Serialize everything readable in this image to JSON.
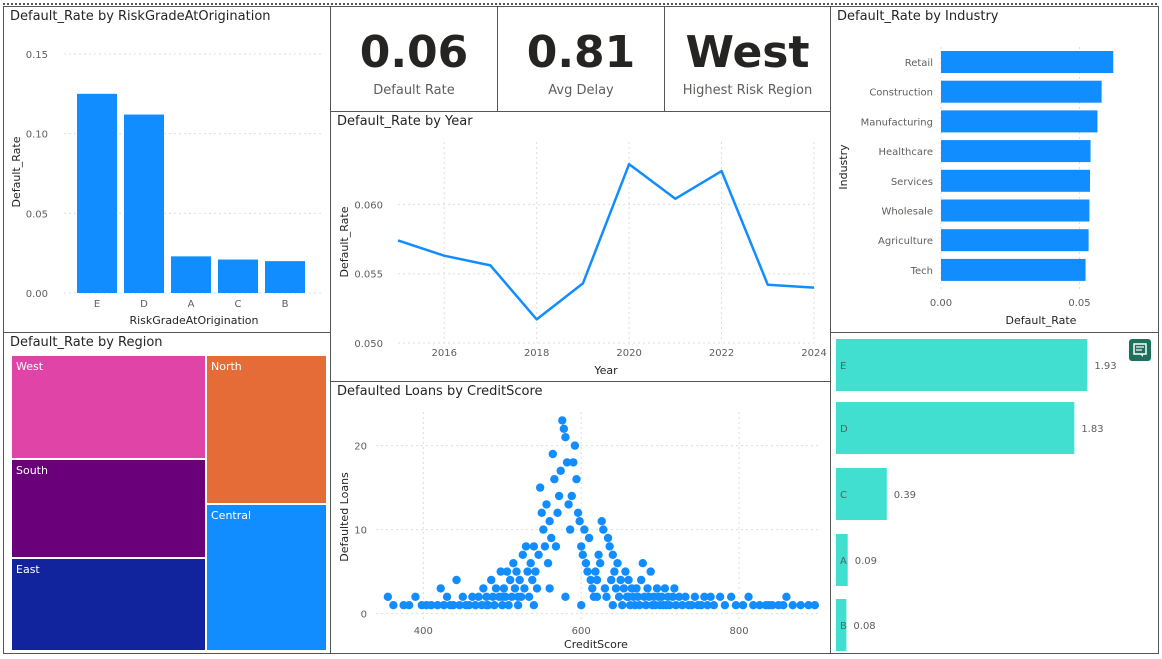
{
  "colors": {
    "bar": "#118DFF",
    "line": "#118DFF",
    "teal": "#41DFD0",
    "west": "#E044A7",
    "north": "#E66C37",
    "south": "#6B007B",
    "central": "#118DFF",
    "east": "#12239E"
  },
  "risk_grade": {
    "title": "Default_Rate by RiskGradeAtOrigination",
    "chart_data": {
      "type": "bar",
      "categories": [
        "E",
        "D",
        "A",
        "C",
        "B"
      ],
      "values": [
        0.125,
        0.112,
        0.023,
        0.021,
        0.02
      ],
      "xlabel": "RiskGradeAtOrigination",
      "ylabel": "Default_Rate",
      "ylim": [
        0,
        0.15
      ],
      "yticks": [
        "0.15",
        "0.10",
        "0.05",
        "0.00"
      ]
    }
  },
  "cards": [
    {
      "value": "0.06",
      "label": "Default Rate"
    },
    {
      "value": "0.81",
      "label": "Avg Delay"
    },
    {
      "value": "West",
      "label": "Highest Risk Region"
    }
  ],
  "industry": {
    "title": "Default_Rate by Industry",
    "chart_data": {
      "type": "bar",
      "orientation": "horizontal",
      "categories": [
        "Retail",
        "Construction",
        "Manufacturing",
        "Healthcare",
        "Services",
        "Wholesale",
        "Agriculture",
        "Tech"
      ],
      "values": [
        0.0622,
        0.058,
        0.0565,
        0.054,
        0.0538,
        0.0536,
        0.0533,
        0.0522
      ],
      "xlabel": "Default_Rate",
      "ylabel": "Industry",
      "xlim": [
        0,
        0.065
      ],
      "xticks": [
        "0.00",
        "0.05"
      ]
    }
  },
  "year": {
    "title": "Default_Rate by Year",
    "chart_data": {
      "type": "line",
      "x": [
        2015,
        2016,
        2017,
        2018,
        2019,
        2020,
        2021,
        2022,
        2023,
        2024
      ],
      "values": [
        0.0574,
        0.0563,
        0.0556,
        0.0517,
        0.0543,
        0.0629,
        0.0604,
        0.0624,
        0.0542,
        0.054
      ],
      "xlabel": "Year",
      "ylabel": "Default_Rate",
      "ylim": [
        0.05,
        0.0645
      ],
      "xlim": [
        2015,
        2024
      ],
      "xticks": [
        "2016",
        "2018",
        "2020",
        "2022",
        "2024"
      ],
      "yticks": [
        "0.060",
        "0.055",
        "0.050"
      ]
    }
  },
  "region": {
    "title": "Default_Rate by Region",
    "chart_data": {
      "type": "treemap",
      "categories": [
        "West",
        "North",
        "South",
        "Central",
        "East"
      ],
      "values": [
        0.062,
        0.0615,
        0.06,
        0.059,
        0.058
      ]
    }
  },
  "credit": {
    "title": "Defaulted Loans by CreditScore",
    "chart_data": {
      "type": "scatter",
      "xlabel": "CreditScore",
      "ylabel": "Defaulted Loans",
      "xlim": [
        340,
        900
      ],
      "ylim": [
        -1,
        24
      ],
      "xticks": [
        "400",
        "600",
        "800"
      ],
      "yticks": [
        "20",
        "10",
        "0"
      ],
      "points": [
        [
          355,
          2
        ],
        [
          362,
          1
        ],
        [
          375,
          1
        ],
        [
          382,
          1
        ],
        [
          390,
          2
        ],
        [
          398,
          1
        ],
        [
          404,
          1
        ],
        [
          410,
          1
        ],
        [
          418,
          1
        ],
        [
          422,
          3
        ],
        [
          426,
          1
        ],
        [
          430,
          2
        ],
        [
          434,
          1
        ],
        [
          438,
          1
        ],
        [
          442,
          4
        ],
        [
          446,
          1
        ],
        [
          450,
          2
        ],
        [
          454,
          1
        ],
        [
          458,
          1
        ],
        [
          462,
          2
        ],
        [
          466,
          1
        ],
        [
          470,
          2
        ],
        [
          474,
          1
        ],
        [
          476,
          3
        ],
        [
          480,
          2
        ],
        [
          482,
          1
        ],
        [
          486,
          4
        ],
        [
          488,
          2
        ],
        [
          490,
          1
        ],
        [
          492,
          3
        ],
        [
          496,
          2
        ],
        [
          498,
          5
        ],
        [
          500,
          1
        ],
        [
          502,
          3
        ],
        [
          504,
          2
        ],
        [
          506,
          5
        ],
        [
          508,
          1
        ],
        [
          510,
          4
        ],
        [
          512,
          2
        ],
        [
          514,
          6
        ],
        [
          516,
          3
        ],
        [
          518,
          5
        ],
        [
          520,
          1
        ],
        [
          522,
          4
        ],
        [
          524,
          2
        ],
        [
          526,
          7
        ],
        [
          528,
          3
        ],
        [
          530,
          8
        ],
        [
          532,
          5
        ],
        [
          534,
          2
        ],
        [
          536,
          6
        ],
        [
          538,
          4
        ],
        [
          540,
          8
        ],
        [
          542,
          5
        ],
        [
          544,
          3
        ],
        [
          546,
          7
        ],
        [
          548,
          15
        ],
        [
          550,
          12
        ],
        [
          552,
          10
        ],
        [
          554,
          8
        ],
        [
          556,
          13
        ],
        [
          558,
          6
        ],
        [
          560,
          11
        ],
        [
          562,
          9
        ],
        [
          564,
          19
        ],
        [
          566,
          16
        ],
        [
          568,
          8
        ],
        [
          570,
          12
        ],
        [
          572,
          14
        ],
        [
          574,
          17
        ],
        [
          576,
          23
        ],
        [
          578,
          22
        ],
        [
          580,
          21
        ],
        [
          582,
          18
        ],
        [
          584,
          13
        ],
        [
          586,
          10
        ],
        [
          588,
          14
        ],
        [
          590,
          18
        ],
        [
          592,
          20
        ],
        [
          594,
          16
        ],
        [
          596,
          12
        ],
        [
          598,
          11
        ],
        [
          600,
          8
        ],
        [
          602,
          7
        ],
        [
          604,
          10
        ],
        [
          606,
          6
        ],
        [
          608,
          5
        ],
        [
          610,
          9
        ],
        [
          612,
          4
        ],
        [
          614,
          3
        ],
        [
          616,
          2
        ],
        [
          618,
          5
        ],
        [
          620,
          4
        ],
        [
          622,
          7
        ],
        [
          624,
          6
        ],
        [
          626,
          11
        ],
        [
          628,
          10
        ],
        [
          630,
          3
        ],
        [
          632,
          2
        ],
        [
          634,
          9
        ],
        [
          636,
          8
        ],
        [
          638,
          4
        ],
        [
          640,
          7
        ],
        [
          642,
          5
        ],
        [
          644,
          3
        ],
        [
          646,
          6
        ],
        [
          648,
          2
        ],
        [
          650,
          4
        ],
        [
          652,
          1
        ],
        [
          654,
          3
        ],
        [
          656,
          5
        ],
        [
          658,
          2
        ],
        [
          660,
          4
        ],
        [
          662,
          1
        ],
        [
          664,
          3
        ],
        [
          666,
          2
        ],
        [
          668,
          1
        ],
        [
          670,
          3
        ],
        [
          672,
          2
        ],
        [
          674,
          1
        ],
        [
          676,
          4
        ],
        [
          678,
          6
        ],
        [
          680,
          2
        ],
        [
          682,
          1
        ],
        [
          684,
          3
        ],
        [
          686,
          2
        ],
        [
          688,
          5
        ],
        [
          690,
          1
        ],
        [
          692,
          2
        ],
        [
          694,
          1
        ],
        [
          696,
          3
        ],
        [
          698,
          2
        ],
        [
          700,
          1
        ],
        [
          702,
          2
        ],
        [
          704,
          1
        ],
        [
          706,
          3
        ],
        [
          708,
          1
        ],
        [
          710,
          2
        ],
        [
          712,
          1
        ],
        [
          716,
          2
        ],
        [
          718,
          3
        ],
        [
          720,
          1
        ],
        [
          724,
          2
        ],
        [
          728,
          1
        ],
        [
          732,
          2
        ],
        [
          736,
          1
        ],
        [
          740,
          1
        ],
        [
          744,
          2
        ],
        [
          748,
          1
        ],
        [
          752,
          1
        ],
        [
          756,
          2
        ],
        [
          760,
          1
        ],
        [
          764,
          2
        ],
        [
          768,
          1
        ],
        [
          776,
          2
        ],
        [
          782,
          1
        ],
        [
          790,
          2
        ],
        [
          796,
          1
        ],
        [
          805,
          1
        ],
        [
          812,
          2
        ],
        [
          818,
          1
        ],
        [
          826,
          1
        ],
        [
          834,
          1
        ],
        [
          838,
          1
        ],
        [
          842,
          1
        ],
        [
          850,
          1
        ],
        [
          856,
          1
        ],
        [
          860,
          2
        ],
        [
          868,
          1
        ],
        [
          878,
          1
        ],
        [
          888,
          1
        ],
        [
          896,
          1
        ],
        [
          600,
          1
        ],
        [
          580,
          2
        ],
        [
          560,
          3
        ],
        [
          540,
          1
        ],
        [
          520,
          2
        ],
        [
          500,
          2
        ],
        [
          480,
          1
        ],
        [
          620,
          2
        ],
        [
          640,
          1
        ],
        [
          660,
          2
        ]
      ]
    }
  },
  "grade_counts": {
    "chart_data": {
      "type": "bar",
      "orientation": "horizontal",
      "categories": [
        "E",
        "D",
        "C",
        "A",
        "B"
      ],
      "values": [
        1.93,
        1.83,
        0.39,
        0.09,
        0.08
      ],
      "labels": [
        "1.93",
        "1.83",
        "0.39",
        "0.09",
        "0.08"
      ],
      "xlim": [
        0,
        2.15
      ]
    }
  },
  "icons": {
    "focus": "comment-icon"
  }
}
